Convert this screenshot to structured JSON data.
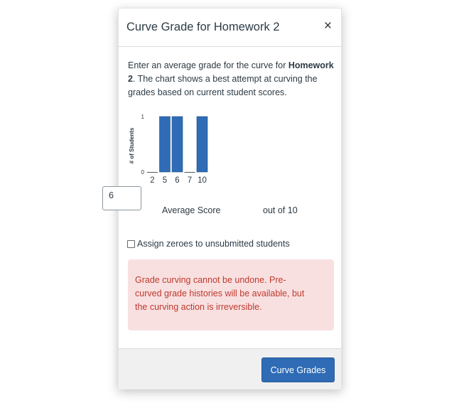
{
  "modal": {
    "title": "Curve Grade for Homework 2",
    "close_label": "×",
    "description_pre": "Enter an average grade for the curve for ",
    "description_bold": "Homework 2",
    "description_post": ". The chart shows a best attempt at curving the grades based on current student scores.",
    "average_label": "Average Score",
    "average_value": "6",
    "out_of_label": "out of 10",
    "checkbox_label": "Assign zeroes to unsubmitted students",
    "checkbox_checked": false,
    "alert_text": "Grade curving cannot be undone. Pre-curved grade histories will be available, but the curving action is irreversible.",
    "submit_label": "Curve Grades"
  },
  "chart_data": {
    "type": "bar",
    "categories": [
      "2",
      "5",
      "6",
      "7",
      "10"
    ],
    "values": [
      0,
      1,
      1,
      0,
      1
    ],
    "ylabel": "# of Students",
    "yticks": [
      "0",
      "1"
    ],
    "ylim": [
      0,
      1
    ],
    "bar_color": "#2f6cb5"
  }
}
